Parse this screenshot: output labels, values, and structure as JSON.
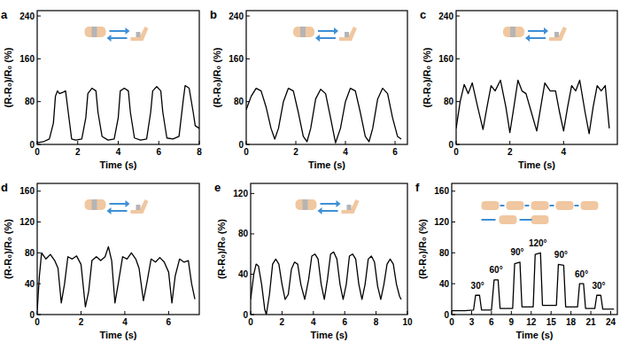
{
  "chart_data": [
    {
      "type": "line",
      "title": "a",
      "x_label": "Time (s)",
      "y_label": "(R-R₀)/R₀ (%)",
      "xlim": [
        0,
        8
      ],
      "xticks": [
        0,
        2,
        4,
        6,
        8
      ],
      "ylim": [
        0,
        250
      ],
      "yticks": [
        0,
        80,
        160,
        240
      ],
      "x": [
        0,
        0.3,
        0.6,
        0.8,
        0.9,
        1.0,
        1.1,
        1.3,
        1.4,
        1.5,
        1.7,
        1.9,
        2.2,
        2.4,
        2.5,
        2.7,
        2.9,
        3.0,
        3.2,
        3.5,
        3.8,
        4.0,
        4.1,
        4.3,
        4.5,
        4.6,
        4.8,
        5.1,
        5.4,
        5.6,
        5.7,
        5.9,
        6.1,
        6.2,
        6.4,
        6.7,
        7.0,
        7.2,
        7.3,
        7.5,
        7.7,
        7.8,
        8.0
      ],
      "series": [
        {
          "color": "#000000",
          "values": [
            3,
            5,
            10,
            40,
            90,
            100,
            95,
            98,
            100,
            70,
            10,
            8,
            10,
            50,
            95,
            105,
            100,
            60,
            15,
            8,
            10,
            50,
            100,
            105,
            100,
            60,
            12,
            8,
            10,
            60,
            100,
            108,
            100,
            60,
            12,
            10,
            15,
            80,
            110,
            105,
            60,
            35,
            30
          ]
        }
      ]
    },
    {
      "type": "line",
      "title": "b",
      "x_label": "Time (s)",
      "y_label": "(R-R₀)/R₀ (%)",
      "xlim": [
        0,
        6.5
      ],
      "xticks": [
        0,
        2,
        4,
        6
      ],
      "ylim": [
        0,
        250
      ],
      "yticks": [
        0,
        80,
        160,
        240
      ],
      "x": [
        0,
        0.2,
        0.4,
        0.6,
        0.8,
        1.0,
        1.15,
        1.3,
        1.5,
        1.7,
        1.9,
        2.1,
        2.3,
        2.45,
        2.6,
        2.8,
        3.0,
        3.2,
        3.4,
        3.6,
        3.8,
        4.0,
        4.2,
        4.4,
        4.6,
        4.8,
        4.95,
        5.1,
        5.3,
        5.5,
        5.7,
        5.9,
        6.1,
        6.25
      ],
      "series": [
        {
          "color": "#000000",
          "values": [
            65,
            90,
            105,
            100,
            70,
            30,
            10,
            30,
            80,
            105,
            100,
            60,
            15,
            5,
            30,
            85,
            103,
            95,
            50,
            3,
            30,
            80,
            105,
            100,
            60,
            15,
            5,
            30,
            85,
            105,
            95,
            50,
            15,
            10
          ]
        }
      ]
    },
    {
      "type": "line",
      "title": "c",
      "x_label": "Time (s)",
      "y_label": "(R-R₀)/R₀ (%)",
      "xlim": [
        0,
        6
      ],
      "xticks": [
        0,
        2,
        4
      ],
      "ylim": [
        0,
        250
      ],
      "yticks": [
        0,
        80,
        160,
        240
      ],
      "x": [
        0,
        0.15,
        0.3,
        0.45,
        0.6,
        0.8,
        1.0,
        1.15,
        1.3,
        1.45,
        1.65,
        1.85,
        2.0,
        2.15,
        2.3,
        2.45,
        2.6,
        2.8,
        3.0,
        3.15,
        3.3,
        3.5,
        3.7,
        3.85,
        4.0,
        4.15,
        4.3,
        4.45,
        4.6,
        4.8,
        4.95,
        5.1,
        5.25,
        5.4,
        5.55,
        5.7
      ],
      "series": [
        {
          "color": "#000000",
          "values": [
            30,
            80,
            112,
            95,
            115,
            70,
            28,
            70,
            110,
            100,
            120,
            70,
            22,
            70,
            120,
            100,
            95,
            60,
            25,
            70,
            115,
            100,
            100,
            60,
            25,
            70,
            110,
            100,
            120,
            60,
            20,
            70,
            110,
            100,
            110,
            30
          ]
        }
      ]
    },
    {
      "type": "line",
      "title": "d",
      "x_label": "Time (s)",
      "y_label": "(R-R₀)/R₀ (%)",
      "xlim": [
        0,
        7.4
      ],
      "xticks": [
        0,
        2,
        4,
        6
      ],
      "ylim": [
        0,
        170
      ],
      "yticks": [
        0,
        40,
        80,
        120,
        160
      ],
      "x": [
        0,
        0.1,
        0.2,
        0.4,
        0.6,
        0.8,
        0.95,
        1.1,
        1.25,
        1.4,
        1.6,
        1.8,
        2.0,
        2.2,
        2.35,
        2.5,
        2.7,
        2.9,
        3.1,
        3.25,
        3.4,
        3.55,
        3.7,
        3.9,
        4.1,
        4.3,
        4.5,
        4.65,
        4.85,
        5.0,
        5.2,
        5.4,
        5.6,
        5.8,
        6.0,
        6.15,
        6.3,
        6.5,
        6.7,
        6.9,
        7.05,
        7.2
      ],
      "series": [
        {
          "color": "#000000",
          "values": [
            5,
            50,
            80,
            72,
            78,
            70,
            60,
            15,
            40,
            75,
            72,
            76,
            65,
            10,
            30,
            70,
            75,
            70,
            75,
            88,
            70,
            15,
            40,
            75,
            72,
            80,
            72,
            60,
            18,
            40,
            72,
            68,
            74,
            68,
            55,
            15,
            50,
            72,
            68,
            70,
            40,
            20
          ]
        }
      ]
    },
    {
      "type": "line",
      "title": "e",
      "x_label": "Time (s)",
      "y_label": "(R-R₀)/R₀ (%)",
      "xlim": [
        0,
        10
      ],
      "xticks": [
        0,
        2,
        4,
        6,
        8,
        10
      ],
      "ylim": [
        0,
        130
      ],
      "yticks": [
        0,
        40,
        80,
        120
      ],
      "x": [
        0,
        0.2,
        0.35,
        0.5,
        0.7,
        0.9,
        1.0,
        1.2,
        1.4,
        1.6,
        1.8,
        2.0,
        2.2,
        2.4,
        2.6,
        2.8,
        3.0,
        3.2,
        3.45,
        3.7,
        3.9,
        4.1,
        4.3,
        4.5,
        4.7,
        4.9,
        5.1,
        5.3,
        5.5,
        5.7,
        5.9,
        6.1,
        6.3,
        6.5,
        6.7,
        6.9,
        7.1,
        7.3,
        7.5,
        7.7,
        7.9,
        8.1,
        8.3,
        8.5,
        8.7,
        8.9,
        9.1,
        9.3,
        9.5,
        9.6
      ],
      "series": [
        {
          "color": "#000000",
          "values": [
            15,
            40,
            50,
            48,
            30,
            5,
            0,
            20,
            50,
            55,
            50,
            30,
            15,
            20,
            45,
            52,
            50,
            30,
            15,
            35,
            58,
            60,
            55,
            30,
            15,
            35,
            60,
            62,
            55,
            30,
            15,
            30,
            58,
            60,
            55,
            30,
            15,
            30,
            55,
            58,
            52,
            28,
            15,
            30,
            50,
            55,
            50,
            30,
            18,
            15
          ]
        }
      ]
    },
    {
      "type": "line",
      "title": "f",
      "x_label": "Time (s)",
      "y_label": "(R-R₀)/R₀ (%)",
      "xlim": [
        0,
        25
      ],
      "xticks": [
        0,
        3,
        6,
        9,
        12,
        15,
        18,
        21,
        24
      ],
      "ylim": [
        0,
        170
      ],
      "yticks": [
        0,
        40,
        80,
        120,
        160
      ],
      "x": [
        0,
        2,
        3.3,
        3.6,
        4.2,
        4.5,
        6.0,
        6.4,
        7.0,
        7.3,
        9.2,
        9.5,
        10.3,
        10.6,
        12.3,
        12.6,
        13.4,
        13.7,
        15.8,
        16.1,
        16.9,
        17.2,
        19.0,
        19.3,
        19.9,
        20.2,
        21.6,
        21.9,
        22.5,
        22.8,
        24.5
      ],
      "series": [
        {
          "color": "#000000",
          "values": [
            5,
            5,
            6,
            25,
            25,
            6,
            6,
            45,
            45,
            8,
            8,
            66,
            68,
            10,
            10,
            78,
            80,
            12,
            12,
            65,
            64,
            10,
            10,
            40,
            40,
            8,
            8,
            25,
            25,
            7,
            7
          ]
        }
      ],
      "annotations": [
        {
          "text": "30°",
          "x": 3.9,
          "y": 30
        },
        {
          "text": "60°",
          "x": 6.7,
          "y": 50
        },
        {
          "text": "90°",
          "x": 9.9,
          "y": 73
        },
        {
          "text": "120°",
          "x": 13.0,
          "y": 85
        },
        {
          "text": "90°",
          "x": 16.5,
          "y": 70
        },
        {
          "text": "60°",
          "x": 19.6,
          "y": 45
        },
        {
          "text": "30°",
          "x": 22.2,
          "y": 30
        }
      ]
    }
  ]
}
